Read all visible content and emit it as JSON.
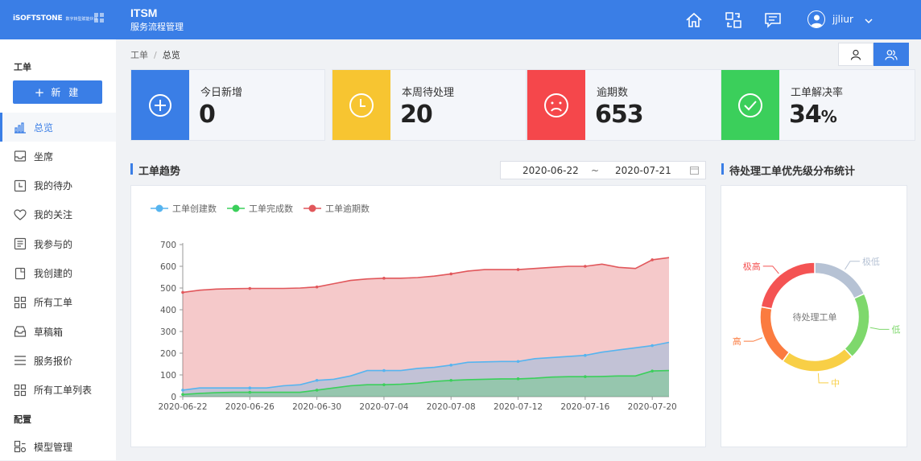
{
  "header": {
    "logo_text": "iSOFTSTONE",
    "logo_sub": "数字转型赋能伙伴",
    "title": "ITSM",
    "subtitle": "服务流程管理",
    "user_name": "jjliur"
  },
  "sidebar": {
    "section_ticket": "工单",
    "new_button": "新 建",
    "section_config": "配置",
    "items": [
      {
        "label": "总览",
        "icon": "bar-chart-icon"
      },
      {
        "label": "坐席",
        "icon": "inbox-icon"
      },
      {
        "label": "我的待办",
        "icon": "clock-icon"
      },
      {
        "label": "我的关注",
        "icon": "heart-icon"
      },
      {
        "label": "我参与的",
        "icon": "document-icon"
      },
      {
        "label": "我创建的",
        "icon": "file-icon"
      },
      {
        "label": "所有工单",
        "icon": "grid-icon"
      },
      {
        "label": "草稿箱",
        "icon": "tray-icon"
      },
      {
        "label": "服务报价",
        "icon": "menu-icon"
      },
      {
        "label": "所有工单列表",
        "icon": "grid-icon"
      }
    ],
    "config_items": [
      {
        "label": "模型管理",
        "icon": "model-icon"
      }
    ]
  },
  "breadcrumb": {
    "root": "工单",
    "separator": "/",
    "current": "总览"
  },
  "stats": [
    {
      "label": "今日新增",
      "value": "0",
      "color": "#3a7ee6",
      "icon": "plus-circle-icon"
    },
    {
      "label": "本周待处理",
      "value": "20",
      "color": "#f7c531",
      "icon": "clock-icon"
    },
    {
      "label": "逾期数",
      "value": "653",
      "color": "#f5474b",
      "icon": "sad-face-icon"
    },
    {
      "label": "工单解决率",
      "value": "34",
      "unit": "%",
      "color": "#3bcf5b",
      "icon": "check-circle-icon"
    }
  ],
  "trend": {
    "title": "工单趋势",
    "date_start": "2020-06-22",
    "date_sep": "~",
    "date_end": "2020-07-21"
  },
  "priority": {
    "title": "待处理工单优先级分布统计"
  },
  "chart_data": [
    {
      "type": "area",
      "legend_placement": "top-left",
      "ylim": [
        0,
        700
      ],
      "yticks": [
        0,
        100,
        200,
        300,
        400,
        500,
        600,
        700
      ],
      "x_tick_labels": [
        "2020-06-22",
        "2020-06-26",
        "2020-06-30",
        "2020-07-04",
        "2020-07-08",
        "2020-07-12",
        "2020-07-16",
        "2020-07-20"
      ],
      "x": [
        "2020-06-22",
        "2020-06-23",
        "2020-06-24",
        "2020-06-25",
        "2020-06-26",
        "2020-06-27",
        "2020-06-28",
        "2020-06-29",
        "2020-06-30",
        "2020-07-01",
        "2020-07-02",
        "2020-07-03",
        "2020-07-04",
        "2020-07-05",
        "2020-07-06",
        "2020-07-07",
        "2020-07-08",
        "2020-07-09",
        "2020-07-10",
        "2020-07-11",
        "2020-07-12",
        "2020-07-13",
        "2020-07-14",
        "2020-07-15",
        "2020-07-16",
        "2020-07-17",
        "2020-07-18",
        "2020-07-19",
        "2020-07-20",
        "2020-07-21"
      ],
      "series": [
        {
          "name": "工单创建数",
          "color": "#56b4ef",
          "values": [
            30,
            40,
            40,
            40,
            40,
            40,
            50,
            55,
            75,
            80,
            95,
            120,
            120,
            120,
            130,
            135,
            145,
            158,
            160,
            162,
            162,
            175,
            180,
            185,
            190,
            205,
            215,
            225,
            235,
            250
          ]
        },
        {
          "name": "工单完成数",
          "color": "#3bcf5b",
          "values": [
            10,
            15,
            18,
            20,
            20,
            20,
            20,
            20,
            30,
            40,
            50,
            55,
            55,
            57,
            62,
            70,
            75,
            78,
            80,
            82,
            82,
            85,
            90,
            92,
            92,
            93,
            95,
            95,
            118,
            120
          ]
        },
        {
          "name": "工单逾期数",
          "color": "#e1575b",
          "values": [
            480,
            490,
            495,
            497,
            498,
            498,
            498,
            500,
            505,
            520,
            535,
            542,
            545,
            545,
            548,
            555,
            565,
            578,
            585,
            585,
            585,
            590,
            595,
            600,
            600,
            610,
            595,
            590,
            630,
            640
          ]
        }
      ]
    },
    {
      "type": "pie",
      "donut": true,
      "slices": [
        {
          "label": "极低",
          "value": 18,
          "color": "#b6c2d4"
        },
        {
          "label": "低",
          "value": 20,
          "color": "#7ed86c"
        },
        {
          "label": "中",
          "value": 22,
          "color": "#f8cf46"
        },
        {
          "label": "高",
          "value": 18,
          "color": "#fb7b3f"
        },
        {
          "label": "极高",
          "value": 22,
          "color": "#f45353"
        }
      ],
      "center_label": "待处理工单"
    }
  ]
}
